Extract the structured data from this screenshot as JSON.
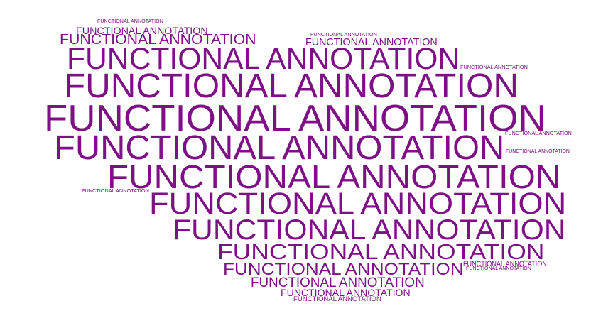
{
  "cloud": {
    "word": "FUNCTIONAL ANNOTATION",
    "color": "#7e0f86",
    "occurrences": 26
  }
}
